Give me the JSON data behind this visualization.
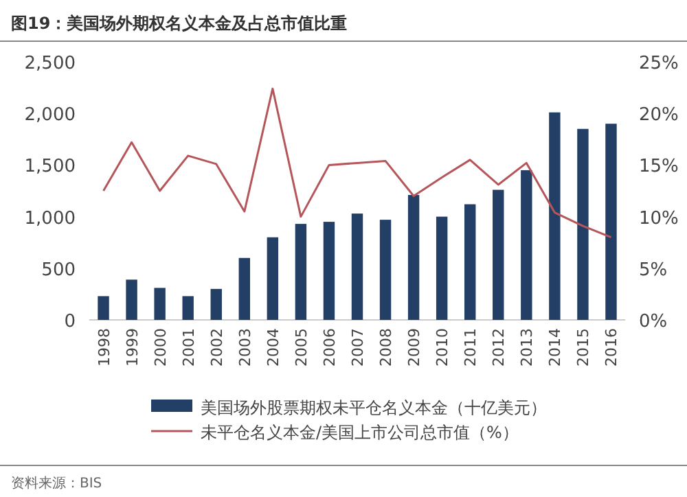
{
  "chart_data": {
    "type": "bar",
    "title": "图19：美国场外期权名义本金及占总市值比重",
    "categories": [
      "1998",
      "1999",
      "2000",
      "2001",
      "2002",
      "2003",
      "2004",
      "2005",
      "2006",
      "2007",
      "2008",
      "2009",
      "2010",
      "2011",
      "2012",
      "2013",
      "2014",
      "2015",
      "2016"
    ],
    "series": [
      {
        "name": "美国场外股票期权未平仓名义本金（十亿美元）",
        "color": "#243f66",
        "values": [
          230,
          390,
          310,
          230,
          300,
          600,
          800,
          930,
          950,
          1030,
          970,
          1210,
          1000,
          1120,
          1260,
          1450,
          2010,
          1850,
          1900
        ]
      },
      {
        "name": "未平仓名义本金/美国上市公司总市值（%）",
        "type": "line",
        "axis": "y2",
        "color": "#b5565a",
        "values": [
          12.5,
          17.2,
          12.5,
          15.9,
          15.1,
          10.5,
          22.4,
          10.0,
          15.0,
          15.2,
          15.4,
          12.0,
          13.8,
          15.5,
          13.1,
          15.2,
          10.4,
          9.1,
          8.0
        ]
      }
    ],
    "ylim": [
      0,
      2500
    ],
    "yticks": [
      {
        "value": 0,
        "label": "0"
      },
      {
        "value": 500,
        "label": "500"
      },
      {
        "value": 1000,
        "label": "1,000"
      },
      {
        "value": 1500,
        "label": "1,500"
      },
      {
        "value": 2000,
        "label": "2,000"
      },
      {
        "value": 2500,
        "label": "2,500"
      }
    ],
    "y2lim": [
      0,
      25
    ],
    "y2ticks": [
      {
        "value": 0,
        "label": "0%"
      },
      {
        "value": 5,
        "label": "5%"
      },
      {
        "value": 10,
        "label": "10%"
      },
      {
        "value": 15,
        "label": "15%"
      },
      {
        "value": 20,
        "label": "20%"
      },
      {
        "value": 25,
        "label": "25%"
      }
    ],
    "legend": "bottom",
    "annotations": [
      "资料来源：BIS"
    ]
  }
}
